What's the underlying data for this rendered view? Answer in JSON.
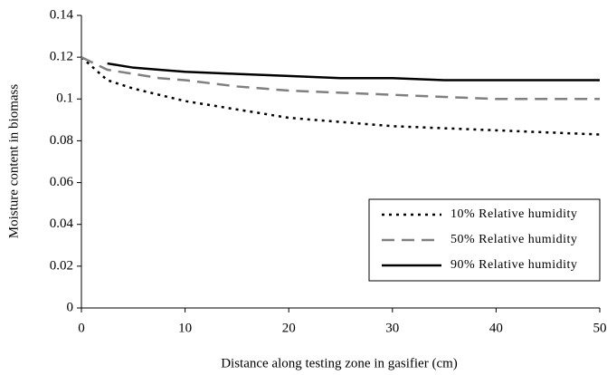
{
  "chart_data": {
    "type": "line",
    "xlabel": "Distance along testing zone in gasifier (cm)",
    "ylabel": "Moisture content in biomass",
    "x": [
      0,
      2.5,
      5,
      7.5,
      10,
      15,
      20,
      25,
      30,
      35,
      40,
      45,
      50
    ],
    "series": [
      {
        "name": "10% Relative humidity",
        "color": "#000000",
        "dash": "dotted",
        "values": [
          0.12,
          0.109,
          0.105,
          0.102,
          0.099,
          0.095,
          0.091,
          0.089,
          0.087,
          0.086,
          0.085,
          0.084,
          0.083
        ]
      },
      {
        "name": "50% Relative humidity",
        "color": "#808080",
        "dash": "dashed",
        "values": [
          0.12,
          0.114,
          0.112,
          0.11,
          0.109,
          0.106,
          0.104,
          0.103,
          0.102,
          0.101,
          0.1,
          0.1,
          0.1
        ]
      },
      {
        "name": "90% Relative humidity",
        "color": "#000000",
        "dash": "solid",
        "values": [
          null,
          0.117,
          0.115,
          0.114,
          0.113,
          0.112,
          0.111,
          0.11,
          0.11,
          0.109,
          0.109,
          0.109,
          0.109
        ]
      }
    ],
    "xlim": [
      0,
      50
    ],
    "xticks": [
      0,
      10,
      20,
      30,
      40,
      50
    ],
    "ylim": [
      0,
      0.14
    ],
    "yticks": [
      0,
      0.02,
      0.04,
      0.06,
      0.08,
      0.1,
      0.12,
      0.14
    ],
    "grid": false,
    "legend": "lower right"
  }
}
